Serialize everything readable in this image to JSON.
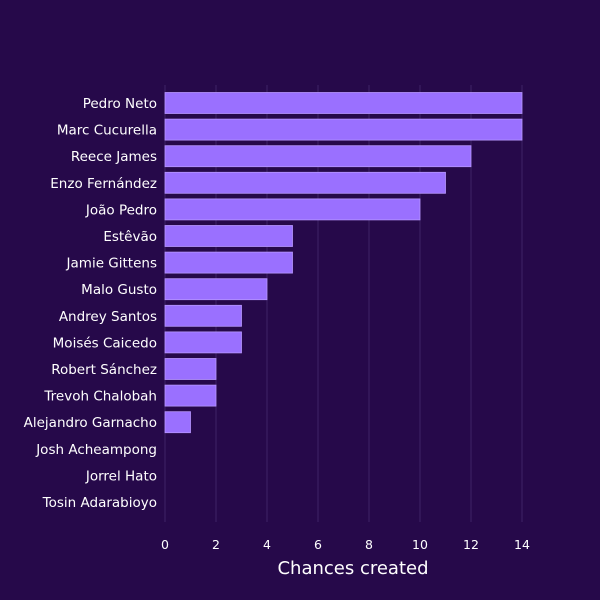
{
  "chart_data": {
    "type": "bar",
    "orientation": "horizontal",
    "categories": [
      "Pedro Neto",
      "Marc Cucurella",
      "Reece James",
      "Enzo Fernández",
      "João Pedro",
      "Estêvão",
      "Jamie Gittens",
      "Malo Gusto",
      "Andrey Santos",
      "Moisés Caicedo",
      "Robert Sánchez",
      "Trevoh Chalobah",
      "Alejandro Garnacho",
      "Josh Acheampong",
      "Jorrel Hato",
      "Tosin Adarabioyo"
    ],
    "values": [
      14,
      14,
      12,
      11,
      10,
      5,
      5,
      4,
      3,
      3,
      2,
      2,
      1,
      0,
      0,
      0
    ],
    "xlabel": "Chances created",
    "ylabel": "",
    "title": "",
    "xlim": [
      0,
      14
    ],
    "xticks": [
      0,
      2,
      4,
      6,
      8,
      10,
      12,
      14
    ],
    "grid": "vertical",
    "legend": "none",
    "colors": {
      "background": "#26094a",
      "bar": "#9a70ff",
      "bar_border": "#b796ff",
      "grid": "#3d2466",
      "text": "#ffffff"
    }
  }
}
